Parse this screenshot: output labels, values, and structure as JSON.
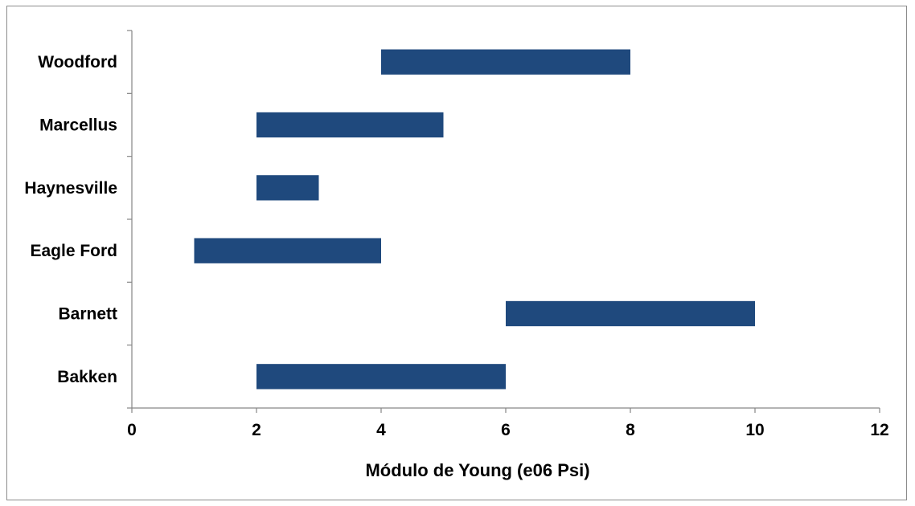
{
  "chart_data": {
    "type": "bar",
    "orientation": "horizontal",
    "subtype": "floating-range",
    "title": "",
    "xlabel": "Módulo de Young (e06 Psi)",
    "ylabel": "",
    "xlim": [
      0,
      12
    ],
    "xticks": [
      "0",
      "2",
      "4",
      "6",
      "8",
      "10",
      "12"
    ],
    "categories": [
      "Bakken",
      "Barnett",
      "Eagle Ford",
      "Haynesville",
      "Marcellus",
      "Woodford"
    ],
    "series": [
      {
        "ranges": [
          [
            2,
            6
          ],
          [
            6,
            10
          ],
          [
            1,
            4
          ],
          [
            2,
            3
          ],
          [
            2,
            5
          ],
          [
            4,
            8
          ]
        ]
      }
    ],
    "bar_color": "#1f497d",
    "axis_color": "#868686",
    "grid": false,
    "legend": "none"
  }
}
